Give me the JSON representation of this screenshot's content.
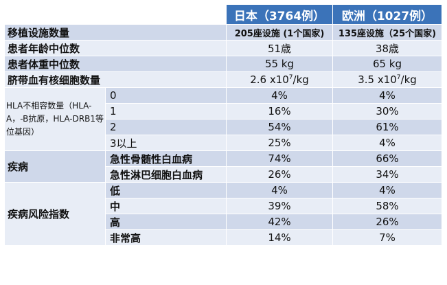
{
  "headers": [
    "日本（3764例）",
    "欧洲（1027例）"
  ],
  "rows_simple": [
    {
      "label": "移植设施数量",
      "japan": "205座设施 (1个国家)",
      "europe": "135座设施（25个国家)"
    },
    {
      "label": "患者年龄中位数",
      "japan": "51歳",
      "europe": "38歳"
    },
    {
      "label": "患者体重中位数",
      "japan": "55 kg",
      "europe": "65 kg"
    },
    {
      "label": "脐带血有核细胞数量",
      "japan_base": "2.6 x10",
      "japan_exp": "7",
      "japan_unit": "/kg",
      "europe_base": "3.5 x10",
      "europe_exp": "7",
      "europe_unit": "/kg"
    }
  ],
  "hla": {
    "group_label": "HLA不相容数量（HLA-A，-B抗原，HLA-DRB1等位基因）",
    "rows": [
      {
        "label": "0",
        "japan": "4%",
        "europe": "4%"
      },
      {
        "label": "1",
        "japan": "16%",
        "europe": "30%"
      },
      {
        "label": "2",
        "japan": "54%",
        "europe": "61%"
      },
      {
        "label": "3以上",
        "japan": "25%",
        "europe": "4%"
      }
    ]
  },
  "disease": {
    "group_label": "疾病",
    "rows": [
      {
        "label": "急性骨髄性白血病",
        "japan": "74%",
        "europe": "66%"
      },
      {
        "label": "急性淋巴细胞白血病",
        "japan": "26%",
        "europe": "34%"
      }
    ]
  },
  "risk": {
    "group_label": "疾病风险指数",
    "rows": [
      {
        "label": "低",
        "japan": "4%",
        "europe": "4%"
      },
      {
        "label": "中",
        "japan": "39%",
        "europe": "58%"
      },
      {
        "label": "高",
        "japan": "42%",
        "europe": "26%"
      },
      {
        "label": "非常高",
        "japan": "14%",
        "europe": "7%"
      }
    ]
  },
  "colors": {
    "header": "#3b73b9",
    "row_dark": "#cfd8ea",
    "row_light": "#e8edf6"
  }
}
